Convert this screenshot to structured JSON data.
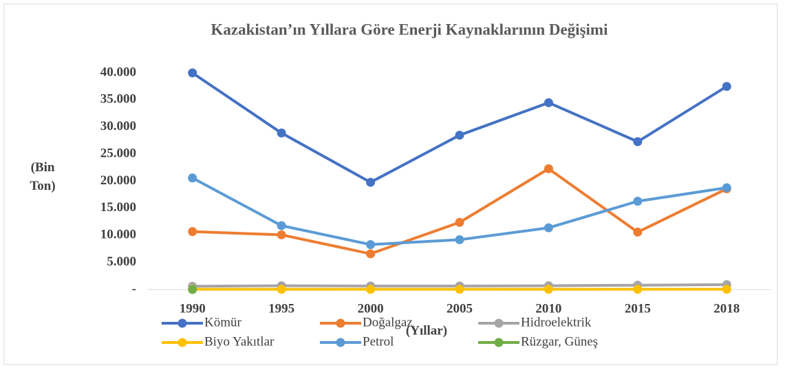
{
  "chart_data": {
    "type": "line",
    "title": "Kazakistan’ın Yıllara Göre Enerji Kaynaklarının Değişimi",
    "y_label": "(Bin Ton)",
    "x_label": "(Yıllar)",
    "categories": [
      "1990",
      "1995",
      "2000",
      "2005",
      "2010",
      "2015",
      "2018"
    ],
    "series": [
      {
        "name": "Kömür",
        "color": "#4472c4",
        "values": [
          40000,
          28900,
          19800,
          28500,
          34500,
          27300,
          37500
        ]
      },
      {
        "name": "Doğalgaz",
        "color": "#ed7d31",
        "values": [
          10700,
          10100,
          6600,
          12400,
          22300,
          10600,
          18600
        ]
      },
      {
        "name": "Hidroelektrik",
        "color": "#a5a5a5",
        "values": [
          600,
          700,
          650,
          650,
          700,
          800,
          900
        ]
      },
      {
        "name": "Biyo Yakıtlar",
        "color": "#ffc000",
        "values": [
          50,
          50,
          50,
          50,
          50,
          50,
          50
        ]
      },
      {
        "name": "Petrol",
        "color": "#5b9bd5",
        "values": [
          20600,
          11800,
          8300,
          9200,
          11400,
          16300,
          18800
        ]
      },
      {
        "name": "Rüzgar, Güneş",
        "color": "#70ad47",
        "values": [
          10,
          null,
          null,
          null,
          null,
          null,
          null
        ]
      }
    ],
    "ylim": [
      0,
      40000
    ],
    "yticks": [
      {
        "value": 0,
        "label": "-"
      },
      {
        "value": 5000,
        "label": "5.000"
      },
      {
        "value": 10000,
        "label": "10.000"
      },
      {
        "value": 15000,
        "label": "15.000"
      },
      {
        "value": 20000,
        "label": "20.000"
      },
      {
        "value": 25000,
        "label": "25.000"
      },
      {
        "value": 30000,
        "label": "30.000"
      },
      {
        "value": 35000,
        "label": "35.000"
      },
      {
        "value": 40000,
        "label": "40.000"
      }
    ],
    "legend": "bottom"
  }
}
